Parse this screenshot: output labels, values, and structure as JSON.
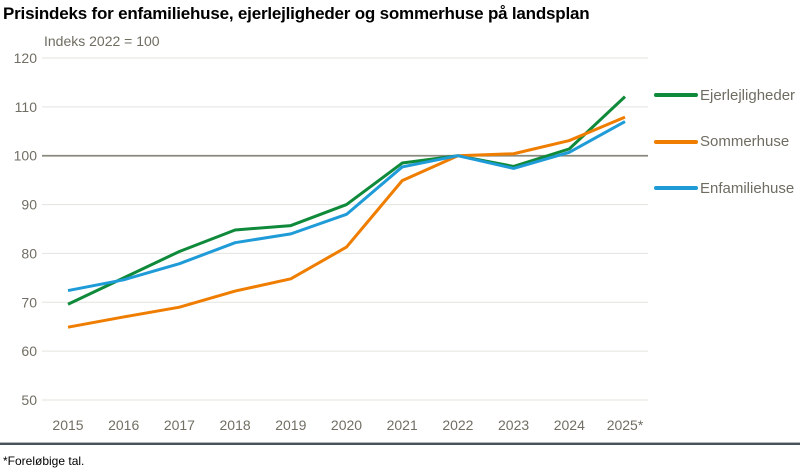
{
  "title": "Prisindeks for enfamiliehuse, ejerlejligheder og sommerhuse på landsplan",
  "subtitle": "Indeks 2022 = 100",
  "footnote": "*Foreløbige tal.",
  "colors": {
    "grid_light": "#e3e3de",
    "grid_reference": "#8a897e",
    "tick_text": "#716f64",
    "legend_text": "#6f6d62",
    "title_text": "#000000",
    "footer_rule": "#47525a"
  },
  "chart_data": {
    "type": "line",
    "title": "Prisindeks for enfamiliehuse, ejerlejligheder og sommerhuse på landsplan",
    "subtitle": "Indeks 2022 = 100",
    "categories": [
      "2015",
      "2016",
      "2017",
      "2018",
      "2019",
      "2020",
      "2021",
      "2022",
      "2023",
      "2024",
      "2025*"
    ],
    "series": [
      {
        "name": "Ejerlejligheder",
        "color": "#0f8a3a",
        "values": [
          69.6,
          75.0,
          80.4,
          84.8,
          85.7,
          90.0,
          98.5,
          100.0,
          97.8,
          101.4,
          112.1
        ]
      },
      {
        "name": "Sommerhuse",
        "color": "#ef7d00",
        "values": [
          64.9,
          67.0,
          69.0,
          72.3,
          74.8,
          81.3,
          94.9,
          100.0,
          100.4,
          103.1,
          107.9
        ]
      },
      {
        "name": "Enfamiliehuse",
        "color": "#1f9bd7",
        "values": [
          72.4,
          74.6,
          77.9,
          82.2,
          84.0,
          88.0,
          97.7,
          100.0,
          97.4,
          100.7,
          107.0
        ]
      }
    ],
    "ylim": [
      50,
      120
    ],
    "ytick_step": 10,
    "yticks": [
      50,
      60,
      70,
      80,
      90,
      100,
      110,
      120
    ],
    "reference_line": 100,
    "xlabel": "",
    "ylabel": "",
    "grid": "horizontal",
    "legend_position": "right",
    "footnote": "*Foreløbige tal."
  }
}
